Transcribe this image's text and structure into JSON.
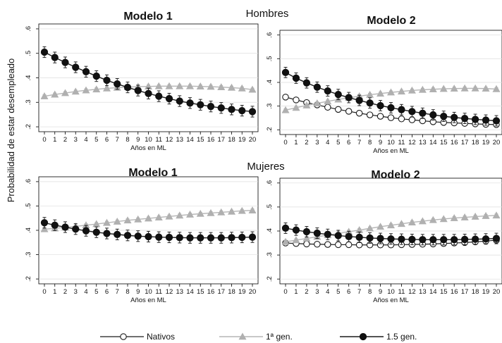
{
  "figure": {
    "ylabel": "Probabilidad de estar desempleado",
    "sections": [
      "Hombres",
      "Mujeres"
    ],
    "legend": [
      {
        "label": "Nativos",
        "marker": "open-circle",
        "color": "#000000"
      },
      {
        "label": "1ª gen.",
        "marker": "triangle",
        "color": "#b0b0b0"
      },
      {
        "label": "1.5 gen.",
        "marker": "filled-circle",
        "color": "#1a1a1a"
      }
    ]
  },
  "chart_data": [
    {
      "type": "line",
      "section": "Hombres",
      "title": "Modelo 1",
      "xlabel": "Años en ML",
      "ylabel": "Probabilidad de estar desempleado",
      "x": [
        0,
        1,
        2,
        3,
        4,
        5,
        6,
        7,
        8,
        9,
        10,
        11,
        12,
        13,
        14,
        15,
        16,
        17,
        18,
        19,
        20
      ],
      "xticks": [
        "0",
        "1",
        "2",
        "3",
        "4",
        "5",
        "6",
        "7",
        "8",
        "9",
        "10",
        "11",
        "12",
        "13",
        "14",
        "15",
        "16",
        "17",
        "18",
        "19",
        "20"
      ],
      "ylim": [
        0.18,
        0.62
      ],
      "yticks": [
        0.2,
        0.3,
        0.4,
        0.5,
        0.6
      ],
      "yticklabels": [
        ".2",
        ".3",
        ".4",
        ".5",
        ".6"
      ],
      "series": [
        {
          "name": "1ª gen.",
          "values": [
            0.325,
            0.332,
            0.338,
            0.344,
            0.349,
            0.353,
            0.357,
            0.36,
            0.362,
            0.364,
            0.365,
            0.366,
            0.366,
            0.366,
            0.366,
            0.365,
            0.364,
            0.362,
            0.36,
            0.357,
            0.352
          ]
        },
        {
          "name": "1.5 gen.",
          "values": [
            0.505,
            0.483,
            0.463,
            0.443,
            0.425,
            0.407,
            0.39,
            0.375,
            0.361,
            0.348,
            0.336,
            0.325,
            0.315,
            0.305,
            0.297,
            0.29,
            0.283,
            0.277,
            0.271,
            0.266,
            0.262
          ]
        }
      ]
    },
    {
      "type": "line",
      "section": "Hombres",
      "title": "Modelo 2",
      "xlabel": "Años en ML",
      "ylabel": "",
      "x": [
        0,
        1,
        2,
        3,
        4,
        5,
        6,
        7,
        8,
        9,
        10,
        11,
        12,
        13,
        14,
        15,
        16,
        17,
        18,
        19,
        20
      ],
      "xticks": [
        "0",
        "1",
        "2",
        "3",
        "4",
        "5",
        "6",
        "7",
        "8",
        "9",
        "10",
        "11",
        "12",
        "13",
        "14",
        "15",
        "16",
        "17",
        "18",
        "19",
        "20"
      ],
      "ylim": [
        0.18,
        0.62
      ],
      "yticks": [
        0.2,
        0.3,
        0.4,
        0.5,
        0.6
      ],
      "yticklabels": [
        ".2",
        ".3",
        ".4",
        ".5",
        ".6"
      ],
      "series": [
        {
          "name": "Nativos",
          "values": [
            0.338,
            0.326,
            0.315,
            0.305,
            0.295,
            0.286,
            0.278,
            0.27,
            0.263,
            0.257,
            0.251,
            0.246,
            0.242,
            0.238,
            0.234,
            0.231,
            0.229,
            0.227,
            0.225,
            0.223,
            0.222
          ]
        },
        {
          "name": "1ª gen.",
          "values": [
            0.283,
            0.293,
            0.303,
            0.312,
            0.32,
            0.328,
            0.335,
            0.342,
            0.348,
            0.353,
            0.358,
            0.362,
            0.366,
            0.369,
            0.371,
            0.373,
            0.374,
            0.375,
            0.375,
            0.374,
            0.372
          ]
        },
        {
          "name": "1.5 gen.",
          "values": [
            0.442,
            0.418,
            0.398,
            0.38,
            0.364,
            0.349,
            0.336,
            0.324,
            0.313,
            0.302,
            0.293,
            0.285,
            0.277,
            0.27,
            0.263,
            0.257,
            0.252,
            0.248,
            0.244,
            0.241,
            0.238
          ]
        }
      ]
    },
    {
      "type": "line",
      "section": "Mujeres",
      "title": "Modelo 1",
      "xlabel": "Años en ML",
      "ylabel": "Probabilidad de estar desempleado",
      "x": [
        0,
        1,
        2,
        3,
        4,
        5,
        6,
        7,
        8,
        9,
        10,
        11,
        12,
        13,
        14,
        15,
        16,
        17,
        18,
        19,
        20
      ],
      "xticks": [
        "0",
        "1",
        "2",
        "3",
        "4",
        "5",
        "6",
        "7",
        "8",
        "9",
        "10",
        "11",
        "12",
        "13",
        "14",
        "15",
        "16",
        "17",
        "18",
        "19",
        "20"
      ],
      "ylim": [
        0.18,
        0.62
      ],
      "yticks": [
        0.2,
        0.3,
        0.4,
        0.5,
        0.6
      ],
      "yticklabels": [
        ".2",
        ".3",
        ".4",
        ".5",
        ".6"
      ],
      "series": [
        {
          "name": "1ª gen.",
          "values": [
            0.405,
            0.408,
            0.412,
            0.416,
            0.421,
            0.426,
            0.431,
            0.436,
            0.441,
            0.445,
            0.449,
            0.453,
            0.457,
            0.461,
            0.465,
            0.468,
            0.471,
            0.474,
            0.477,
            0.48,
            0.482
          ]
        },
        {
          "name": "1.5 gen.",
          "values": [
            0.431,
            0.421,
            0.413,
            0.405,
            0.398,
            0.392,
            0.387,
            0.383,
            0.379,
            0.376,
            0.374,
            0.372,
            0.371,
            0.37,
            0.369,
            0.369,
            0.369,
            0.369,
            0.37,
            0.371,
            0.372
          ]
        }
      ]
    },
    {
      "type": "line",
      "section": "Mujeres",
      "title": "Modelo 2",
      "xlabel": "Años en ML",
      "ylabel": "",
      "x": [
        0,
        1,
        2,
        3,
        4,
        5,
        6,
        7,
        8,
        9,
        10,
        11,
        12,
        13,
        14,
        15,
        16,
        17,
        18,
        19,
        20
      ],
      "xticks": [
        "0",
        "1",
        "2",
        "3",
        "4",
        "5",
        "6",
        "7",
        "8",
        "9",
        "10",
        "11",
        "12",
        "13",
        "14",
        "15",
        "16",
        "17",
        "18",
        "19",
        "20"
      ],
      "ylim": [
        0.18,
        0.62
      ],
      "yticks": [
        0.2,
        0.3,
        0.4,
        0.5,
        0.6
      ],
      "yticklabels": [
        ".2",
        ".3",
        ".4",
        ".5",
        ".6"
      ],
      "series": [
        {
          "name": "Nativos",
          "values": [
            0.35,
            0.348,
            0.346,
            0.345,
            0.344,
            0.343,
            0.343,
            0.342,
            0.342,
            0.342,
            0.342,
            0.343,
            0.344,
            0.345,
            0.346,
            0.348,
            0.35,
            0.352,
            0.355,
            0.358,
            0.362
          ]
        },
        {
          "name": "1ª gen.",
          "values": [
            0.355,
            0.362,
            0.369,
            0.376,
            0.383,
            0.39,
            0.397,
            0.404,
            0.411,
            0.418,
            0.424,
            0.43,
            0.436,
            0.441,
            0.446,
            0.45,
            0.454,
            0.457,
            0.46,
            0.463,
            0.465
          ]
        },
        {
          "name": "1.5 gen.",
          "values": [
            0.412,
            0.404,
            0.397,
            0.391,
            0.386,
            0.381,
            0.377,
            0.374,
            0.371,
            0.369,
            0.367,
            0.366,
            0.365,
            0.364,
            0.364,
            0.364,
            0.364,
            0.365,
            0.366,
            0.367,
            0.369
          ]
        }
      ]
    }
  ]
}
